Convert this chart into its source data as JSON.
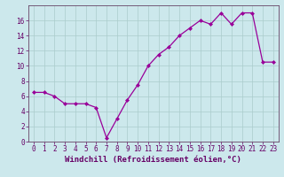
{
  "x": [
    0,
    1,
    2,
    3,
    4,
    5,
    6,
    7,
    8,
    9,
    10,
    11,
    12,
    13,
    14,
    15,
    16,
    17,
    18,
    19,
    20,
    21,
    22,
    23
  ],
  "y": [
    6.5,
    6.5,
    6.0,
    5.0,
    5.0,
    5.0,
    4.5,
    0.5,
    3.0,
    5.5,
    7.5,
    10.0,
    11.5,
    12.5,
    14.0,
    15.0,
    16.0,
    15.5,
    17.0,
    15.5,
    17.0,
    17.0,
    10.5,
    10.5
  ],
  "line_color": "#990099",
  "marker": "D",
  "marker_size": 2.0,
  "bg_color": "#cce8ec",
  "grid_color": "#aacccc",
  "xlabel": "Windchill (Refroidissement éolien,°C)",
  "xlabel_color": "#660066",
  "tick_color": "#660066",
  "axis_color": "#664466",
  "xlim": [
    -0.5,
    23.5
  ],
  "ylim": [
    0,
    18
  ],
  "yticks": [
    0,
    2,
    4,
    6,
    8,
    10,
    12,
    14,
    16
  ],
  "xticks": [
    0,
    1,
    2,
    3,
    4,
    5,
    6,
    7,
    8,
    9,
    10,
    11,
    12,
    13,
    14,
    15,
    16,
    17,
    18,
    19,
    20,
    21,
    22,
    23
  ],
  "font_size_label": 6.5,
  "font_size_tick": 5.5,
  "linewidth": 0.9
}
